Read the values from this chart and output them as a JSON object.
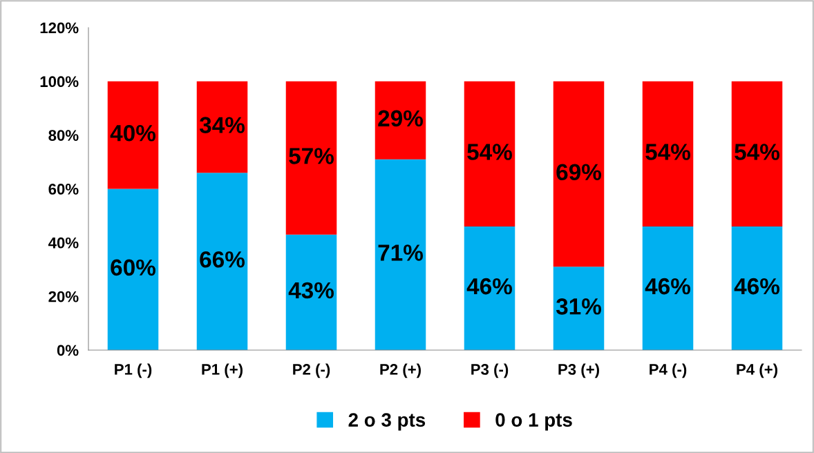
{
  "chart_data": {
    "type": "bar",
    "stacked": true,
    "categories": [
      "P1 (-)",
      "P1 (+)",
      "P2 (-)",
      "P2 (+)",
      "P3 (-)",
      "P3 (+)",
      "P4 (-)",
      "P4 (+)"
    ],
    "series": [
      {
        "name": "2 o 3 pts",
        "color": "#00b0f0",
        "values": [
          60,
          66,
          43,
          71,
          46,
          31,
          46,
          46
        ],
        "value_labels": [
          "60%",
          "66%",
          "43%",
          "71%",
          "46%",
          "31%",
          "46%",
          "46%"
        ]
      },
      {
        "name": "0 o 1 pts",
        "color": "#ff0000",
        "values": [
          40,
          34,
          57,
          29,
          54,
          69,
          54,
          54
        ],
        "value_labels": [
          "40%",
          "34%",
          "57%",
          "29%",
          "54%",
          "69%",
          "54%",
          "54%"
        ]
      }
    ],
    "ylim": [
      0,
      120
    ],
    "yticks": [
      {
        "value": 0,
        "label": "0%"
      },
      {
        "value": 20,
        "label": "20%"
      },
      {
        "value": 40,
        "label": "40%"
      },
      {
        "value": 60,
        "label": "60%"
      },
      {
        "value": 80,
        "label": "80%"
      },
      {
        "value": 100,
        "label": "100%"
      },
      {
        "value": 120,
        "label": "120%"
      }
    ],
    "grid": false,
    "legend": "bottom"
  }
}
